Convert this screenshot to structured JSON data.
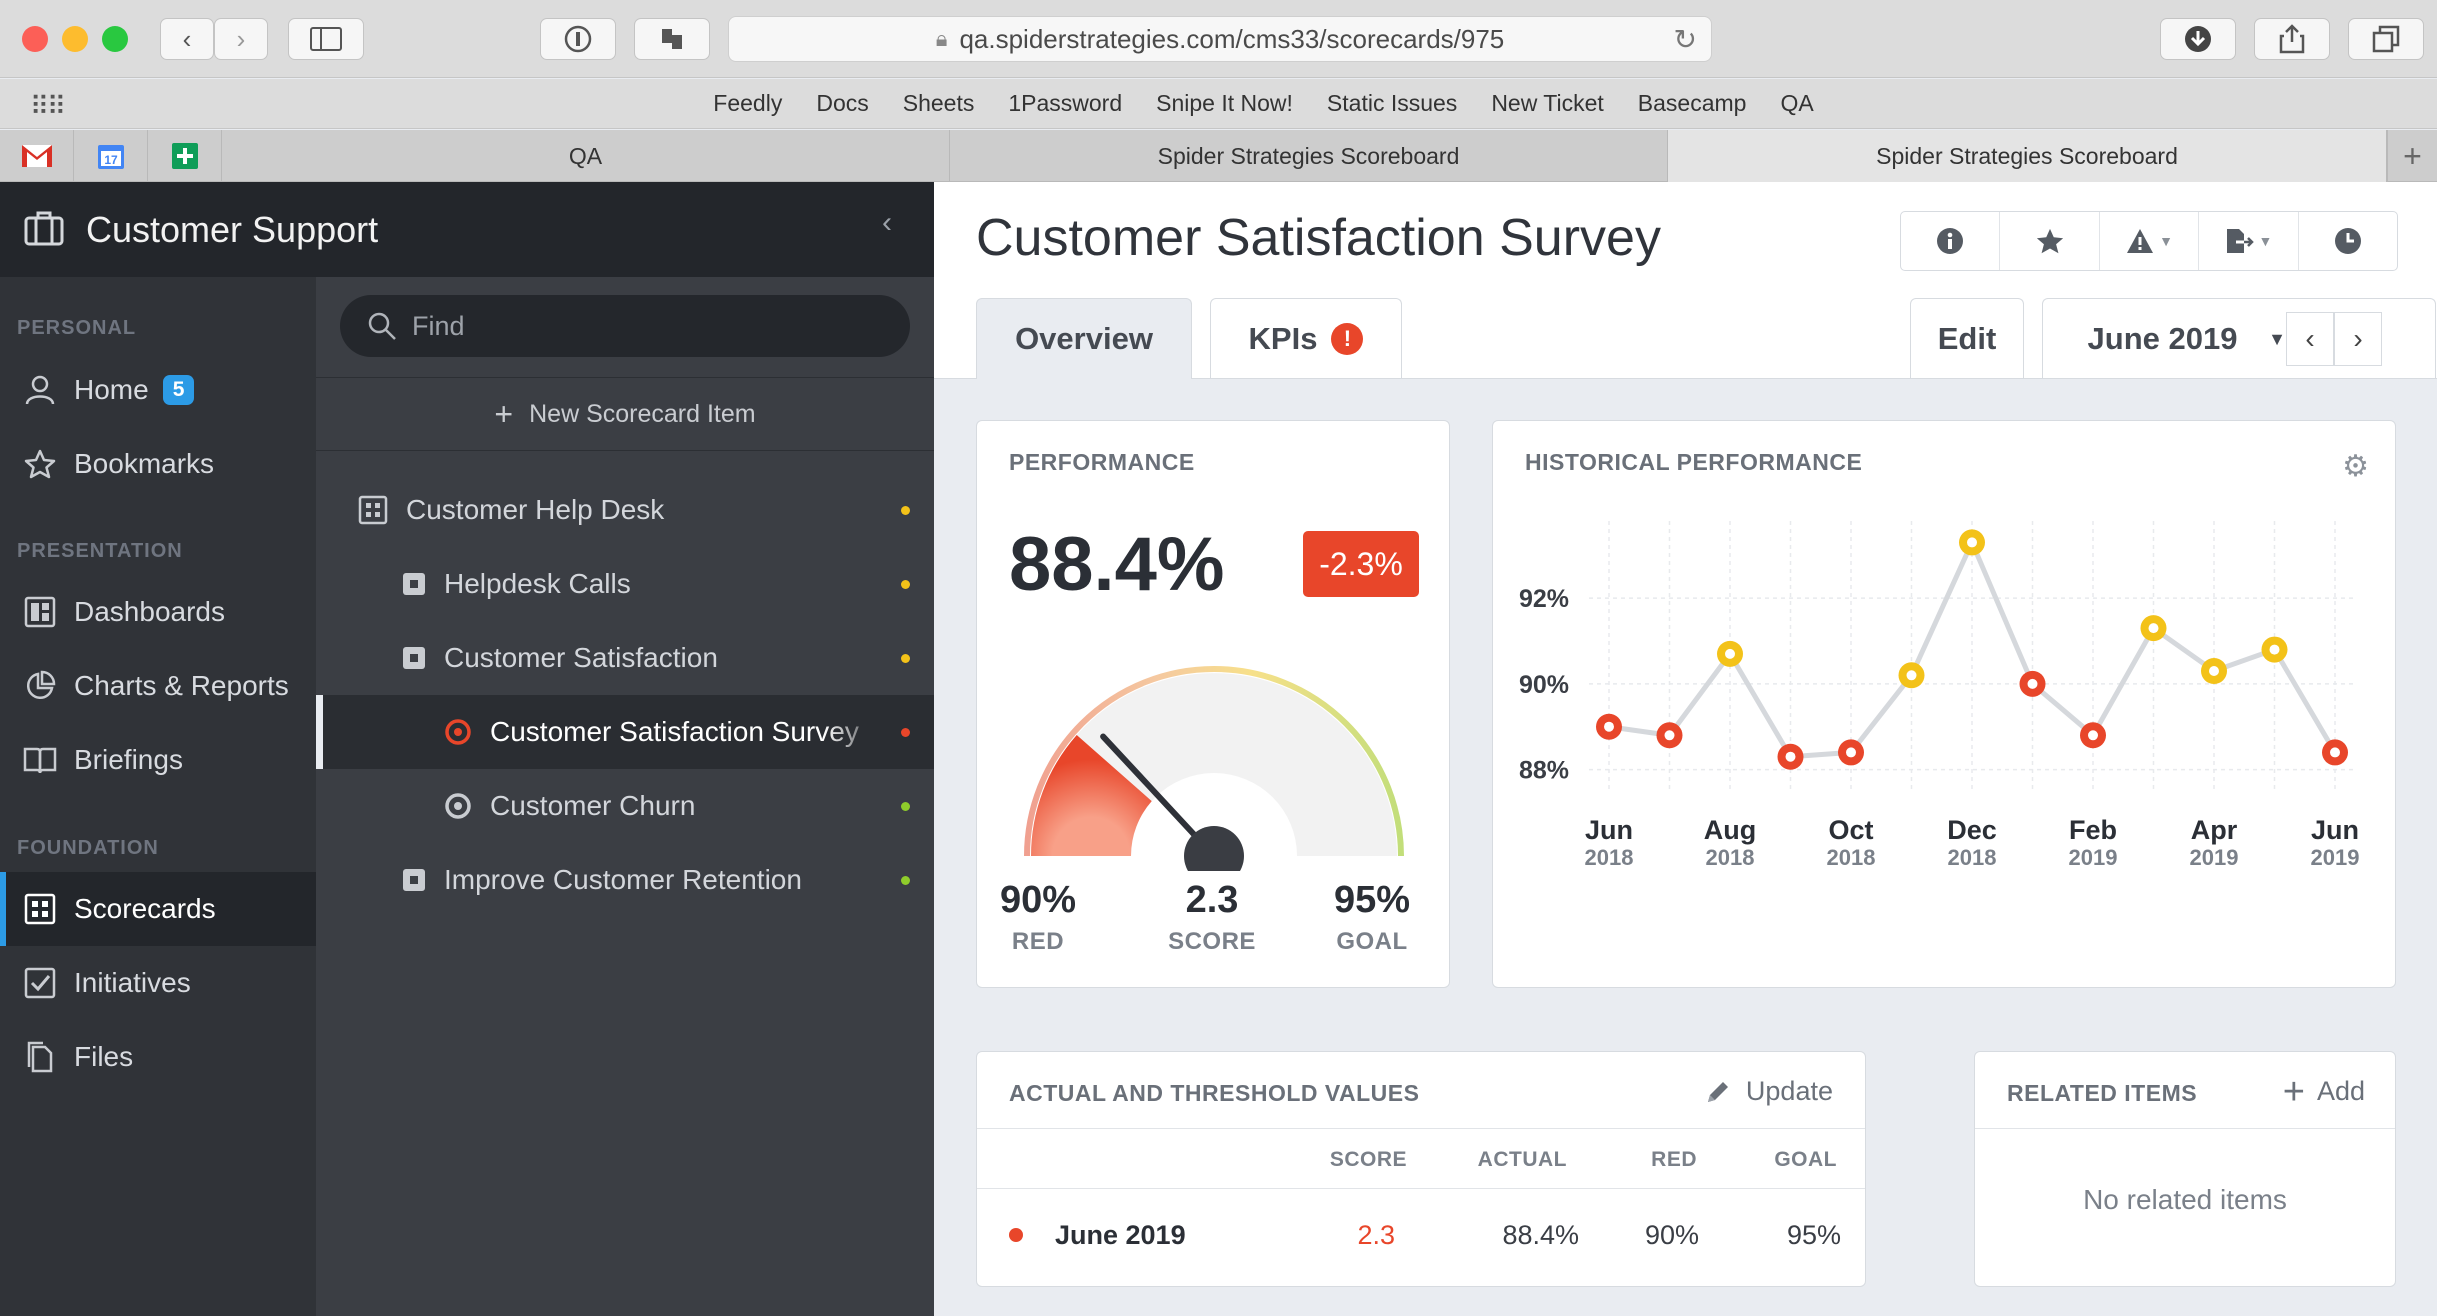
{
  "browser": {
    "url": "qa.spiderstrategies.com/cms33/scorecards/975",
    "bookmarks": [
      "Feedly",
      "Docs",
      "Sheets",
      "1Password",
      "Snipe It Now!",
      "Static Issues",
      "New Ticket",
      "Basecamp",
      "QA"
    ],
    "tabs": [
      "QA",
      "Spider Strategies Scoreboard",
      "Spider Strategies Scoreboard"
    ],
    "calendar_day": "17"
  },
  "app": {
    "title": "Customer Support"
  },
  "nav": {
    "sections": {
      "personal": "PERSONAL",
      "presentation": "PRESENTATION",
      "foundation": "FOUNDATION"
    },
    "home": "Home",
    "home_badge": "5",
    "bookmarks": "Bookmarks",
    "dashboards": "Dashboards",
    "charts": "Charts & Reports",
    "briefings": "Briefings",
    "scorecards": "Scorecards",
    "initiatives": "Initiatives",
    "files": "Files"
  },
  "tree": {
    "find_placeholder": "Find",
    "new_item": "New Scorecard Item",
    "items": [
      {
        "label": "Customer Help Desk",
        "status": "#f3c219"
      },
      {
        "label": "Helpdesk Calls",
        "status": "#f3c219"
      },
      {
        "label": "Customer Satisfaction",
        "status": "#f3c219"
      },
      {
        "label": "Customer Satisfaction Survey",
        "status": "#e8462a"
      },
      {
        "label": "Customer Churn",
        "status": "#8fcc2b"
      },
      {
        "label": "Improve Customer Retention",
        "status": "#8fcc2b"
      }
    ]
  },
  "main": {
    "title": "Customer Satisfaction Survey",
    "tabs": {
      "overview": "Overview",
      "kpis": "KPIs",
      "kpis_alert": "!"
    },
    "edit": "Edit",
    "period": "June 2019"
  },
  "performance": {
    "title": "PERFORMANCE",
    "value": "88.4%",
    "change": "-2.3%",
    "red_value": "90%",
    "red_label": "RED",
    "score_value": "2.3",
    "score_label": "SCORE",
    "goal_value": "95%",
    "goal_label": "GOAL",
    "score": 2.3
  },
  "historical": {
    "title": "HISTORICAL PERFORMANCE"
  },
  "chart_data": {
    "type": "line",
    "title": "HISTORICAL PERFORMANCE",
    "x": [
      "Jun 2018",
      "Jul 2018",
      "Aug 2018",
      "Sep 2018",
      "Oct 2018",
      "Nov 2018",
      "Dec 2018",
      "Jan 2019",
      "Feb 2019",
      "Mar 2019",
      "Apr 2019",
      "May 2019",
      "Jun 2019"
    ],
    "x_tick_labels": [
      {
        "month": "Jun",
        "year": "2018",
        "index": 0
      },
      {
        "month": "Aug",
        "year": "2018",
        "index": 2
      },
      {
        "month": "Oct",
        "year": "2018",
        "index": 4
      },
      {
        "month": "Dec",
        "year": "2018",
        "index": 6
      },
      {
        "month": "Feb",
        "year": "2019",
        "index": 8
      },
      {
        "month": "Apr",
        "year": "2019",
        "index": 10
      },
      {
        "month": "Jun",
        "year": "2019",
        "index": 12
      }
    ],
    "values": [
      89.0,
      88.8,
      90.7,
      88.3,
      88.4,
      90.2,
      93.3,
      90.0,
      88.8,
      91.3,
      90.3,
      90.8,
      88.4
    ],
    "point_status": [
      "red",
      "red",
      "yellow",
      "red",
      "red",
      "yellow",
      "yellow",
      "red",
      "red",
      "yellow",
      "yellow",
      "yellow",
      "red"
    ],
    "y_ticks": [
      88,
      90,
      92
    ],
    "y_tick_labels": [
      "88%",
      "90%",
      "92%"
    ],
    "ylim": [
      87.5,
      93.8
    ],
    "grid": true,
    "colors": {
      "red": "#e8462a",
      "yellow": "#f3c219",
      "line": "#d5d8dc"
    }
  },
  "actuals": {
    "title": "ACTUAL AND THRESHOLD VALUES",
    "update": "Update",
    "headers": {
      "score": "SCORE",
      "actual": "ACTUAL",
      "red": "RED",
      "goal": "GOAL"
    },
    "row": {
      "period": "June 2019",
      "score": "2.3",
      "actual": "88.4%",
      "red": "90%",
      "goal": "95%"
    }
  },
  "related": {
    "title": "RELATED ITEMS",
    "add": "Add",
    "empty": "No related items"
  }
}
